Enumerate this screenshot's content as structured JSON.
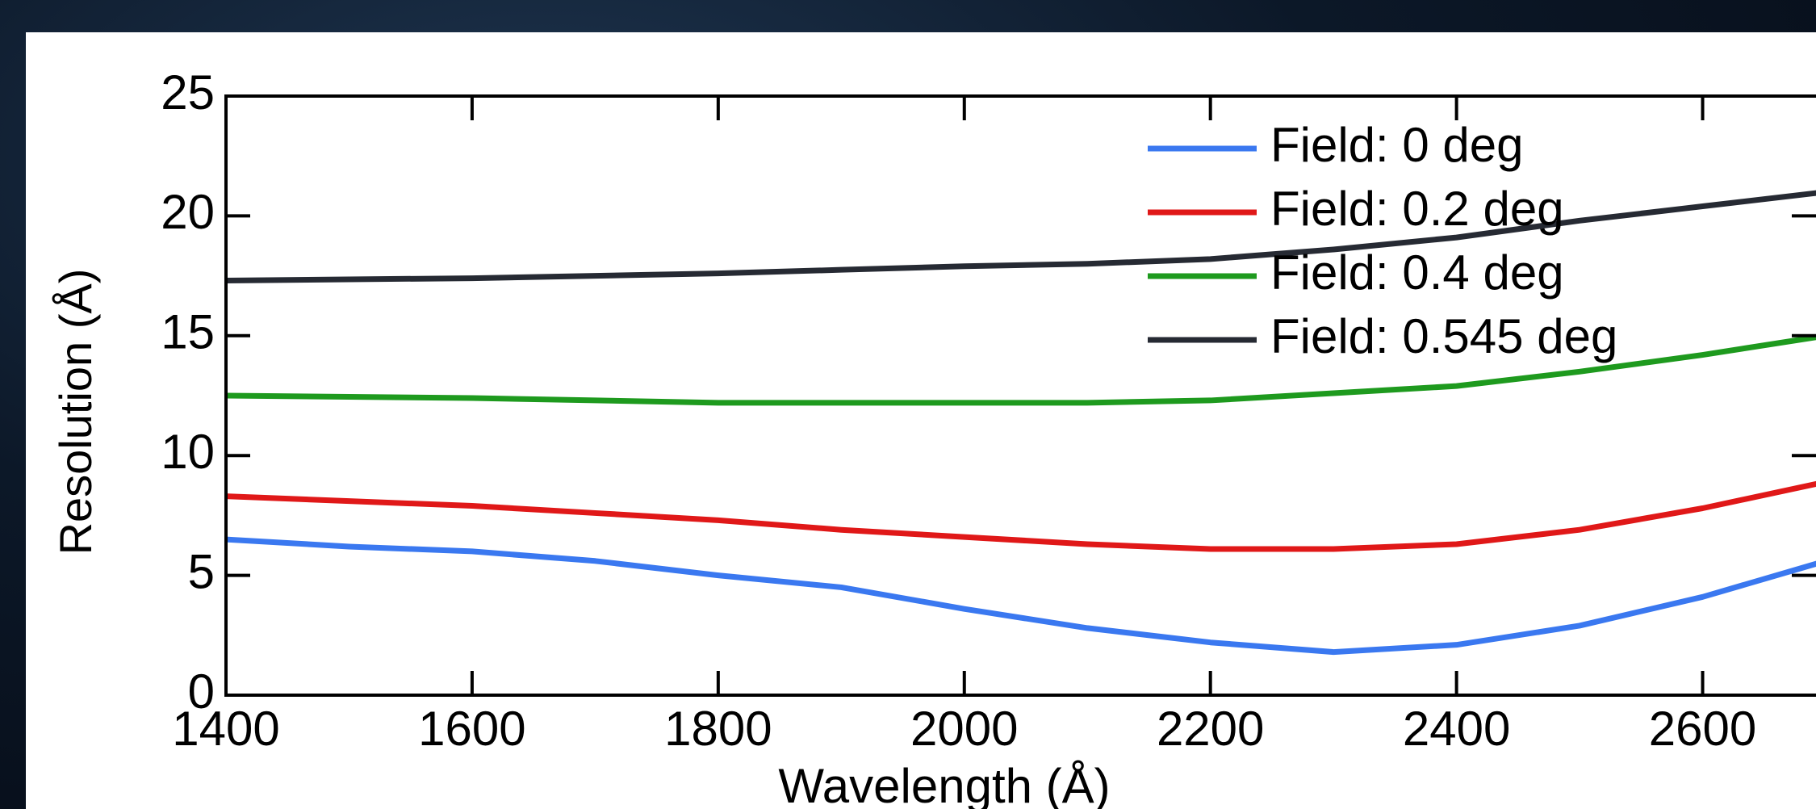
{
  "chart_data": {
    "type": "line",
    "xlabel": "Wavelength (Å)",
    "ylabel": "Resolution (Å)",
    "x": [
      1400,
      1500,
      1600,
      1700,
      1800,
      1900,
      2000,
      2100,
      2200,
      2300,
      2400,
      2500,
      2600,
      2700
    ],
    "series": [
      {
        "name": "Field: 0 deg",
        "color": "#3a78f0",
        "values": [
          6.5,
          6.2,
          6.0,
          5.6,
          5.0,
          4.5,
          3.6,
          2.8,
          2.2,
          1.8,
          2.1,
          2.9,
          4.1,
          5.6
        ]
      },
      {
        "name": "Field: 0.2 deg",
        "color": "#e01818",
        "values": [
          8.3,
          8.1,
          7.9,
          7.6,
          7.3,
          6.9,
          6.6,
          6.3,
          6.1,
          6.1,
          6.3,
          6.9,
          7.8,
          8.9
        ]
      },
      {
        "name": "Field: 0.4 deg",
        "color": "#1e9a1e",
        "values": [
          12.5,
          12.45,
          12.4,
          12.3,
          12.2,
          12.2,
          12.2,
          12.2,
          12.3,
          12.6,
          12.9,
          13.5,
          14.2,
          15.0
        ]
      },
      {
        "name": "Field: 0.545 deg",
        "color": "#262a33",
        "values": [
          17.3,
          17.35,
          17.4,
          17.5,
          17.6,
          17.75,
          17.9,
          18.0,
          18.2,
          18.6,
          19.1,
          19.8,
          20.4,
          21.0
        ]
      }
    ],
    "xlim": [
      1400,
      2700
    ],
    "ylim": [
      0,
      25
    ],
    "xticks": [
      1400,
      1600,
      1800,
      2000,
      2200,
      2400,
      2600
    ],
    "yticks": [
      0,
      5,
      10,
      15,
      20,
      25
    ],
    "legend": "upper right"
  }
}
